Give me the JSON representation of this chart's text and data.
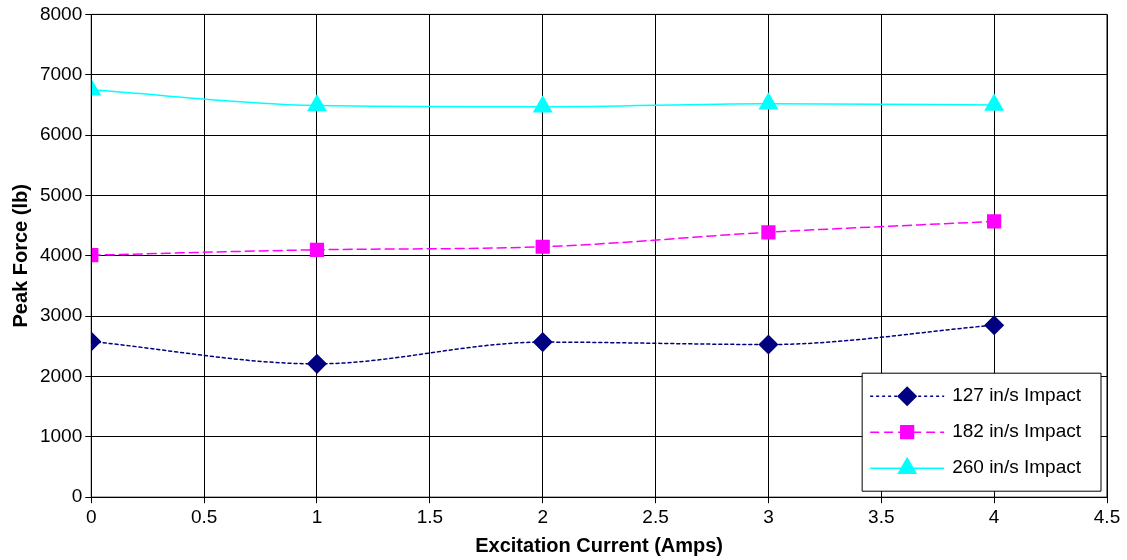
{
  "chart_data": {
    "type": "line",
    "xlabel": "Excitation Current (Amps)",
    "ylabel": "Peak Force (lb)",
    "x": [
      0,
      1,
      2,
      3,
      4
    ],
    "xlim": [
      0,
      4.5
    ],
    "xticks": [
      {
        "value": 0,
        "label": "0"
      },
      0.5,
      1,
      1.5,
      2,
      2.5,
      3,
      3.5,
      4,
      4.5
    ],
    "ylim": [
      0,
      8000
    ],
    "yticks": [
      0,
      1000,
      2000,
      3000,
      4000,
      5000,
      6000,
      7000,
      8000
    ],
    "grid": true,
    "legend": "bottom right",
    "series": [
      {
        "name": "127 in/s Impact",
        "color": "#000080",
        "values": [
          2580,
          2210,
          2570,
          2530,
          2850
        ],
        "marker": "diamond",
        "line_style": "dotted"
      },
      {
        "name": "182 in/s Impact",
        "color": "#ff00ff",
        "values": [
          4010,
          4100,
          4150,
          4390,
          4570
        ],
        "marker": "square",
        "line_style": "dashed"
      },
      {
        "name": "260 in/s Impact",
        "color": "#00ffff",
        "values": [
          6750,
          6490,
          6470,
          6520,
          6500
        ],
        "marker": "triangle",
        "line_style": "solid"
      }
    ]
  }
}
